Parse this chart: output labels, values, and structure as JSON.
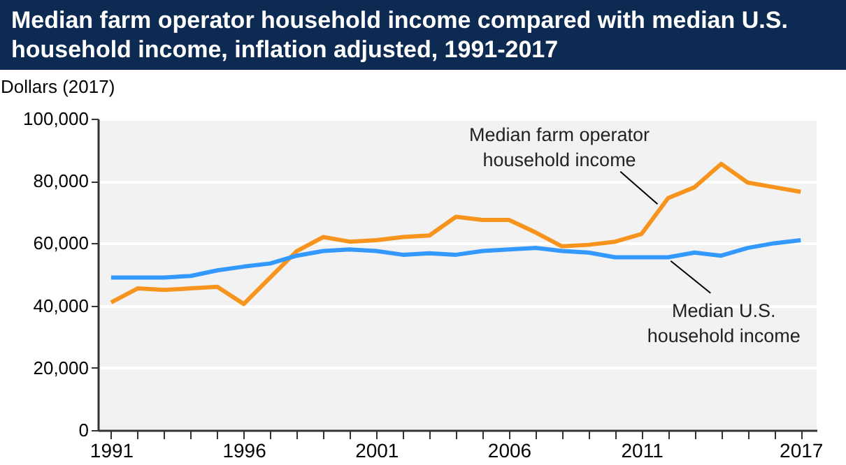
{
  "chart_data": {
    "type": "line",
    "title": "Median farm operator household income compared with median U.S. household income, inflation adjusted, 1991-2017",
    "ylabel": "Dollars (2017)",
    "x": [
      1991,
      1992,
      1993,
      1994,
      1995,
      1996,
      1997,
      1998,
      1999,
      2000,
      2001,
      2002,
      2003,
      2004,
      2005,
      2006,
      2007,
      2008,
      2009,
      2010,
      2011,
      2012,
      2013,
      2014,
      2015,
      2016,
      2017
    ],
    "series": [
      {
        "name": "Median farm operator household income",
        "color": "#f7941d",
        "values": [
          41000,
          45500,
          45000,
          45500,
          46000,
          40500,
          49000,
          57500,
          62000,
          60500,
          61000,
          62000,
          62500,
          68500,
          67500,
          67500,
          63500,
          59000,
          59500,
          60500,
          63000,
          74500,
          78000,
          85500,
          79500,
          78000,
          76500
        ]
      },
      {
        "name": "Median U.S. household income",
        "color": "#3399ff",
        "values": [
          49000,
          49000,
          49000,
          49500,
          51300,
          52500,
          53500,
          56000,
          57500,
          58000,
          57500,
          56300,
          56800,
          56300,
          57500,
          58000,
          58500,
          57500,
          57000,
          55500,
          55500,
          55500,
          57000,
          56000,
          58500,
          60000,
          61000
        ]
      }
    ],
    "xlim": [
      1990.5,
      2017.6
    ],
    "xticks": [
      {
        "value": 1991,
        "label": "1991"
      },
      {
        "value": 1992,
        "label": null
      },
      {
        "value": 1993,
        "label": null
      },
      {
        "value": 1994,
        "label": null
      },
      {
        "value": 1995,
        "label": null
      },
      {
        "value": 1996,
        "label": "1996"
      },
      {
        "value": 1997,
        "label": null
      },
      {
        "value": 1998,
        "label": null
      },
      {
        "value": 1999,
        "label": null
      },
      {
        "value": 2000,
        "label": null
      },
      {
        "value": 2001,
        "label": "2001"
      },
      {
        "value": 2002,
        "label": null
      },
      {
        "value": 2003,
        "label": null
      },
      {
        "value": 2004,
        "label": null
      },
      {
        "value": 2005,
        "label": null
      },
      {
        "value": 2006,
        "label": "2006"
      },
      {
        "value": 2007,
        "label": null
      },
      {
        "value": 2008,
        "label": null
      },
      {
        "value": 2009,
        "label": null
      },
      {
        "value": 2010,
        "label": null
      },
      {
        "value": 2011,
        "label": "2011"
      },
      {
        "value": 2012,
        "label": null
      },
      {
        "value": 2013,
        "label": null
      },
      {
        "value": 2014,
        "label": null
      },
      {
        "value": 2015,
        "label": null
      },
      {
        "value": 2016,
        "label": null
      },
      {
        "value": 2017,
        "label": "2017"
      }
    ],
    "ylim": [
      0,
      100000
    ],
    "yticks": [
      {
        "value": 0,
        "label": "0"
      },
      {
        "value": 20000,
        "label": "20,000"
      },
      {
        "value": 40000,
        "label": "40,000"
      },
      {
        "value": 60000,
        "label": "60,000"
      },
      {
        "value": 80000,
        "label": "80,000"
      },
      {
        "value": 100000,
        "label": "100,000"
      }
    ],
    "grid": "y",
    "legend": false,
    "marker": "none",
    "line_style": "solid"
  }
}
